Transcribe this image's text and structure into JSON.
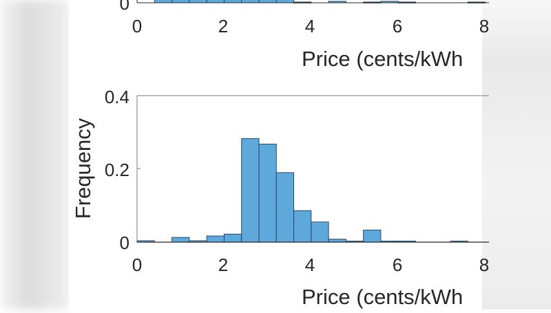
{
  "colors": {
    "bar_fill": "#5ea9dc",
    "bar_edge": "#1f3a55",
    "axis": "#262626"
  },
  "chart_data": [
    {
      "type": "bar",
      "subtype": "histogram",
      "panel": "top (partially cropped)",
      "title": "",
      "xlabel": "Price (cents/kWh)",
      "ylabel": "",
      "xlim": [
        0,
        8
      ],
      "xticks": [
        "0",
        "2",
        "4",
        "6",
        "8"
      ],
      "yticks_visible": [
        "0"
      ],
      "bin_width": 0.4,
      "bin_edges": [
        0,
        0.4,
        0.8,
        1.2,
        1.6,
        2.0,
        2.4,
        2.8,
        3.2,
        3.6,
        4.0,
        4.4,
        4.8,
        5.2,
        5.6,
        6.0,
        6.4,
        6.8,
        7.2,
        7.6,
        8.0
      ],
      "values_note": "Bars 0.4–3.6 extend above the cropped top edge; small bars at 4.4–4.8, 5.2–6.4, 7.6–8.0",
      "values": [
        0,
        null,
        null,
        null,
        null,
        null,
        null,
        null,
        null,
        0.002,
        0,
        0.004,
        0,
        0.002,
        0.004,
        0.002,
        0,
        0,
        0,
        0.002
      ]
    },
    {
      "type": "bar",
      "subtype": "histogram",
      "panel": "bottom",
      "title": "",
      "xlabel": "Price (cents/kWh)",
      "ylabel": "Frequency",
      "xlim": [
        0,
        8
      ],
      "ylim": [
        0,
        0.4
      ],
      "xticks": [
        "0",
        "2",
        "4",
        "6",
        "8"
      ],
      "yticks": [
        "0",
        "0.2",
        "0.4"
      ],
      "bin_width": 0.4,
      "categories": [
        "0-0.4",
        "0.4-0.8",
        "0.8-1.2",
        "1.2-1.6",
        "1.6-2.0",
        "2.0-2.4",
        "2.4-2.8",
        "2.8-3.2",
        "3.2-3.6",
        "3.6-4.0",
        "4.0-4.4",
        "4.4-4.8",
        "4.8-5.2",
        "5.2-5.6",
        "5.6-6.0",
        "6.0-6.4",
        "6.4-6.8",
        "6.8-7.2",
        "7.2-7.6"
      ],
      "bin_edges": [
        0,
        0.4,
        0.8,
        1.2,
        1.6,
        2.0,
        2.4,
        2.8,
        3.2,
        3.6,
        4.0,
        4.4,
        4.8,
        5.2,
        5.6,
        6.0,
        6.4,
        6.8,
        7.2,
        7.6
      ],
      "values": [
        0.004,
        0,
        0.013,
        0.004,
        0.017,
        0.022,
        0.283,
        0.268,
        0.19,
        0.086,
        0.055,
        0.008,
        0.003,
        0.033,
        0.003,
        0.003,
        0,
        0,
        0.003
      ],
      "grid": false,
      "legend": null
    }
  ],
  "top_plot": {
    "y_tick_zero": "0",
    "x_ticks": [
      "0",
      "2",
      "4",
      "6",
      "8"
    ],
    "xlabel": "Price (cents/kWh"
  },
  "bottom_plot": {
    "ylabel": "Frequency",
    "y_ticks": [
      "0",
      "0.2",
      "0.4"
    ],
    "x_ticks": [
      "0",
      "2",
      "4",
      "6",
      "8"
    ],
    "xlabel": "Price (cents/kWh"
  }
}
